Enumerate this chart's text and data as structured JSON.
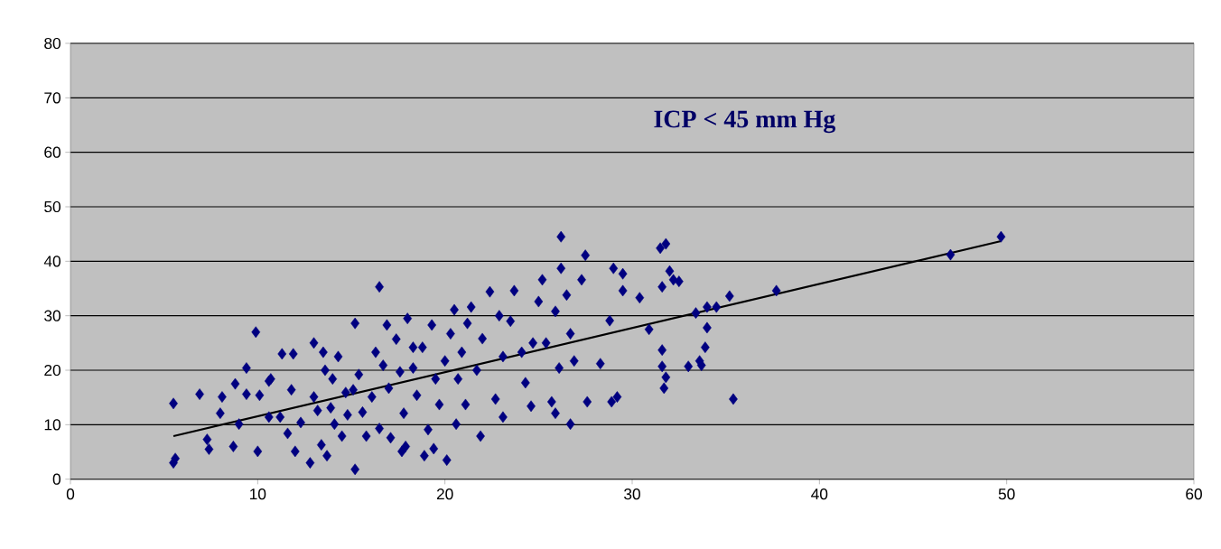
{
  "chart_data": {
    "type": "scatter",
    "annotations": [
      "ICP < 45 mm Hg"
    ],
    "xlim": [
      0,
      60
    ],
    "ylim": [
      0,
      80
    ],
    "xticks": [
      0,
      10,
      20,
      30,
      40,
      50,
      60
    ],
    "yticks": [
      0,
      10,
      20,
      30,
      40,
      50,
      60,
      70,
      80
    ],
    "grid": "y",
    "marker": "diamond",
    "series": [
      {
        "color": "#000080",
        "x": [
          5.5,
          5.5,
          5.6,
          6.9,
          7.3,
          7.4,
          8.0,
          8.1,
          8.8,
          8.7,
          9.4,
          9.4,
          9.9,
          10.0,
          10.1,
          10.6,
          10.6,
          11.2,
          11.3,
          11.6,
          11.8,
          11.9,
          12.0,
          12.3,
          12.8,
          13.0,
          13.0,
          13.2,
          13.5,
          13.7,
          13.9,
          14.0,
          14.3,
          14.5,
          14.7,
          15.1,
          15.2,
          15.2,
          15.4,
          15.6,
          16.1,
          16.3,
          16.5,
          16.5,
          16.9,
          17.0,
          17.1,
          17.4,
          17.6,
          17.8,
          17.9,
          18.0,
          18.3,
          18.5,
          18.8,
          19.1,
          19.3,
          19.5,
          19.4,
          19.7,
          20.0,
          20.1,
          20.3,
          20.5,
          20.6,
          20.7,
          20.9,
          21.1,
          21.2,
          21.4,
          21.7,
          21.9,
          22.0,
          22.4,
          22.7,
          22.9,
          23.1,
          23.1,
          23.5,
          23.7,
          24.1,
          24.3,
          24.6,
          24.7,
          25.0,
          25.2,
          25.4,
          25.7,
          25.9,
          25.9,
          26.1,
          26.2,
          26.2,
          26.5,
          26.7,
          26.7,
          26.9,
          27.3,
          27.5,
          27.6,
          28.3,
          28.8,
          28.9,
          29.0,
          29.2,
          29.5,
          29.5,
          30.4,
          30.9,
          31.5,
          31.6,
          31.8,
          31.6,
          31.7,
          31.8,
          31.6,
          32.0,
          32.2,
          32.5,
          33.0,
          33.6,
          33.7,
          33.9,
          34.0,
          33.4,
          34.0,
          34.5,
          35.4,
          35.2,
          37.7,
          47.0,
          49.7,
          9.0,
          10.7,
          13.4,
          15.8,
          18.9,
          17.7,
          14.1,
          14.8,
          13.6,
          16.7,
          18.3
        ],
        "values": [
          13.9,
          3.0,
          3.8,
          15.6,
          7.3,
          5.5,
          12.1,
          15.1,
          17.5,
          6.0,
          20.4,
          15.6,
          27.0,
          5.1,
          15.4,
          18.0,
          11.4,
          11.4,
          23.0,
          8.4,
          16.4,
          23.0,
          5.1,
          10.4,
          3.0,
          25.0,
          15.1,
          12.6,
          23.3,
          4.3,
          13.1,
          18.4,
          22.5,
          7.9,
          15.9,
          16.4,
          1.8,
          28.6,
          19.2,
          12.3,
          15.1,
          23.3,
          35.3,
          9.3,
          28.3,
          16.7,
          7.6,
          25.7,
          19.7,
          12.1,
          6.0,
          29.5,
          20.4,
          15.4,
          24.2,
          9.1,
          28.3,
          18.4,
          5.6,
          13.7,
          21.7,
          3.5,
          26.7,
          31.1,
          10.1,
          18.4,
          23.3,
          13.7,
          28.6,
          31.6,
          20.0,
          7.9,
          25.8,
          34.4,
          14.7,
          30.0,
          11.4,
          22.5,
          29.0,
          34.6,
          23.3,
          17.7,
          13.4,
          25.0,
          32.6,
          36.6,
          25.0,
          14.2,
          30.8,
          12.1,
          20.4,
          44.5,
          38.7,
          33.8,
          26.7,
          10.1,
          21.7,
          36.6,
          41.1,
          14.2,
          21.2,
          29.1,
          14.2,
          38.7,
          15.1,
          37.7,
          34.6,
          33.3,
          27.5,
          42.4,
          35.3,
          43.2,
          23.7,
          16.7,
          18.7,
          20.7,
          38.2,
          36.6,
          36.3,
          20.7,
          21.7,
          20.9,
          24.2,
          27.8,
          30.5,
          31.6,
          31.6,
          14.7,
          33.6,
          34.6,
          41.2,
          44.5,
          10.1,
          18.4,
          6.3,
          7.9,
          4.3,
          5.1,
          10.1,
          11.8,
          20.0,
          20.9,
          24.2
        ]
      },
      {
        "type": "line",
        "color": "#000000",
        "marker": "none",
        "x": [
          5.5,
          49.7
        ],
        "values": [
          7.9,
          43.7
        ]
      }
    ]
  }
}
